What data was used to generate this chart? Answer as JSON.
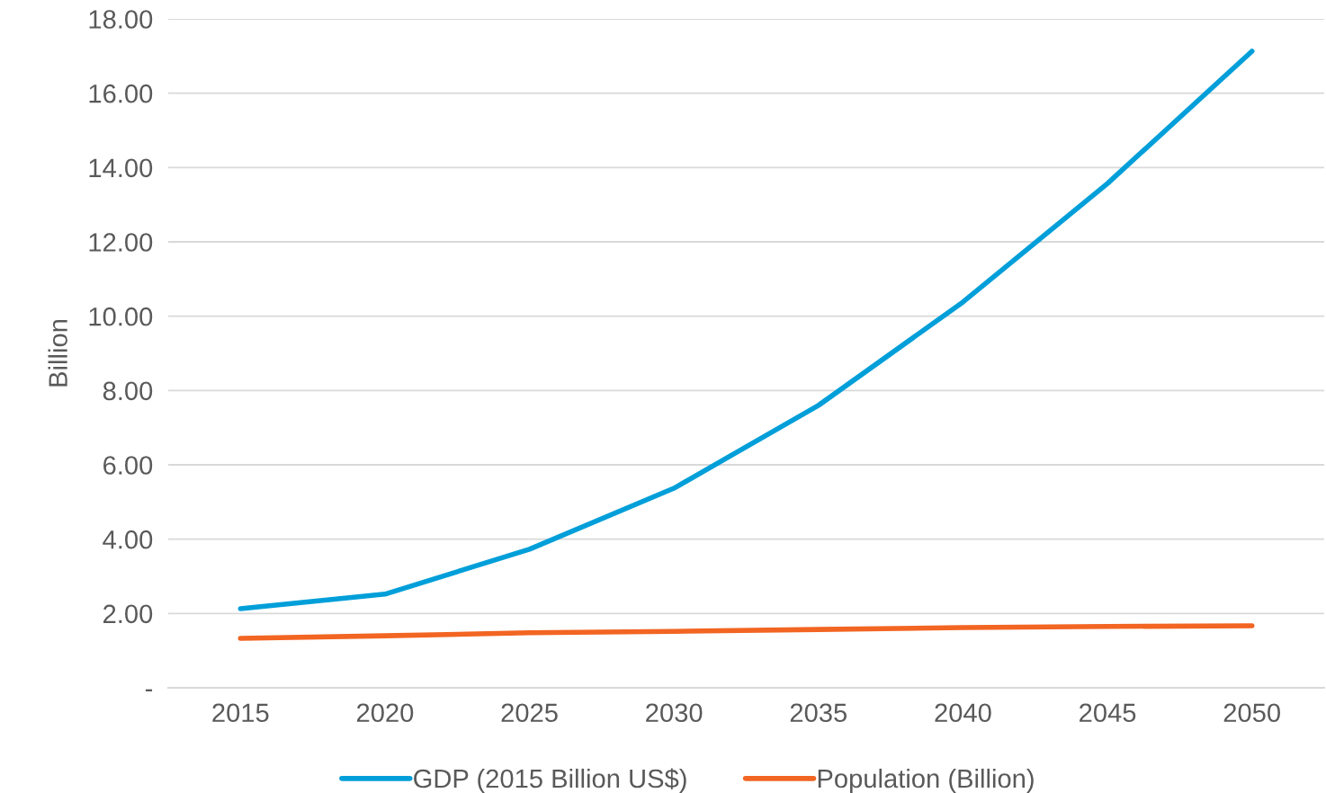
{
  "chart_data": {
    "type": "line",
    "ylabel": "Billion",
    "categories": [
      "2015",
      "2020",
      "2025",
      "2030",
      "2035",
      "2040",
      "2045",
      "2050"
    ],
    "series": [
      {
        "name": "GDP (2015 Billion US$)",
        "color": "#009fd9",
        "values": [
          2.13,
          2.52,
          3.73,
          5.37,
          7.6,
          10.38,
          13.57,
          17.13
        ]
      },
      {
        "name": "Population (Billion)",
        "color": "#f26522",
        "values": [
          1.33,
          1.4,
          1.48,
          1.52,
          1.57,
          1.62,
          1.65,
          1.67
        ]
      }
    ],
    "ylim": [
      0,
      18
    ],
    "yticks": [
      {
        "value": 0,
        "label": "-"
      },
      {
        "value": 2,
        "label": "2.00"
      },
      {
        "value": 4,
        "label": "4.00"
      },
      {
        "value": 6,
        "label": "6.00"
      },
      {
        "value": 8,
        "label": "8.00"
      },
      {
        "value": 10,
        "label": "10.00"
      },
      {
        "value": 12,
        "label": "12.00"
      },
      {
        "value": 14,
        "label": "14.00"
      },
      {
        "value": 16,
        "label": "16.00"
      },
      {
        "value": 18,
        "label": "18.00"
      }
    ],
    "grid": "y",
    "legend": "bottom",
    "marker": "none",
    "line_style": "solid"
  }
}
